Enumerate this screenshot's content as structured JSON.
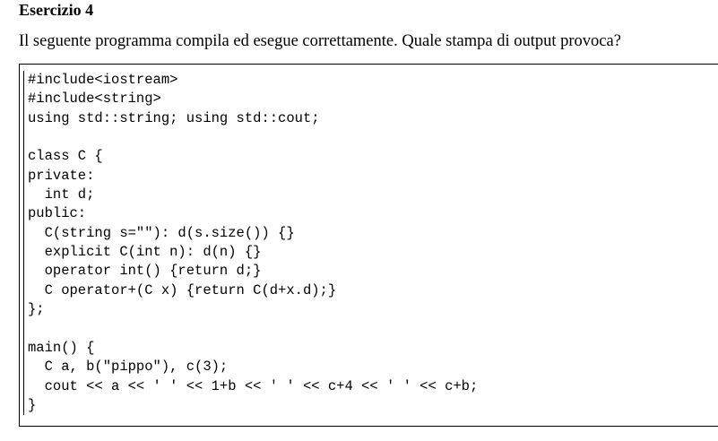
{
  "exercise": {
    "title": "Esercizio 4",
    "question": "Il seguente programma compila ed esegue correttamente. Quale stampa di output provoca?"
  },
  "code": {
    "lines": [
      "#include<iostream>",
      "#include<string>",
      "using std::string; using std::cout;",
      "",
      "class C {",
      "private:",
      "  int d;",
      "public:",
      "  C(string s=\"\"): d(s.size()) {}",
      "  explicit C(int n): d(n) {}",
      "  operator int() {return d;}",
      "  C operator+(C x) {return C(d+x.d);}",
      "};",
      "",
      "main() {",
      "  C a, b(\"pippo\"), c(3);",
      "  cout << a << ' ' << 1+b << ' ' << c+4 << ' ' << c+b;",
      "}"
    ]
  }
}
